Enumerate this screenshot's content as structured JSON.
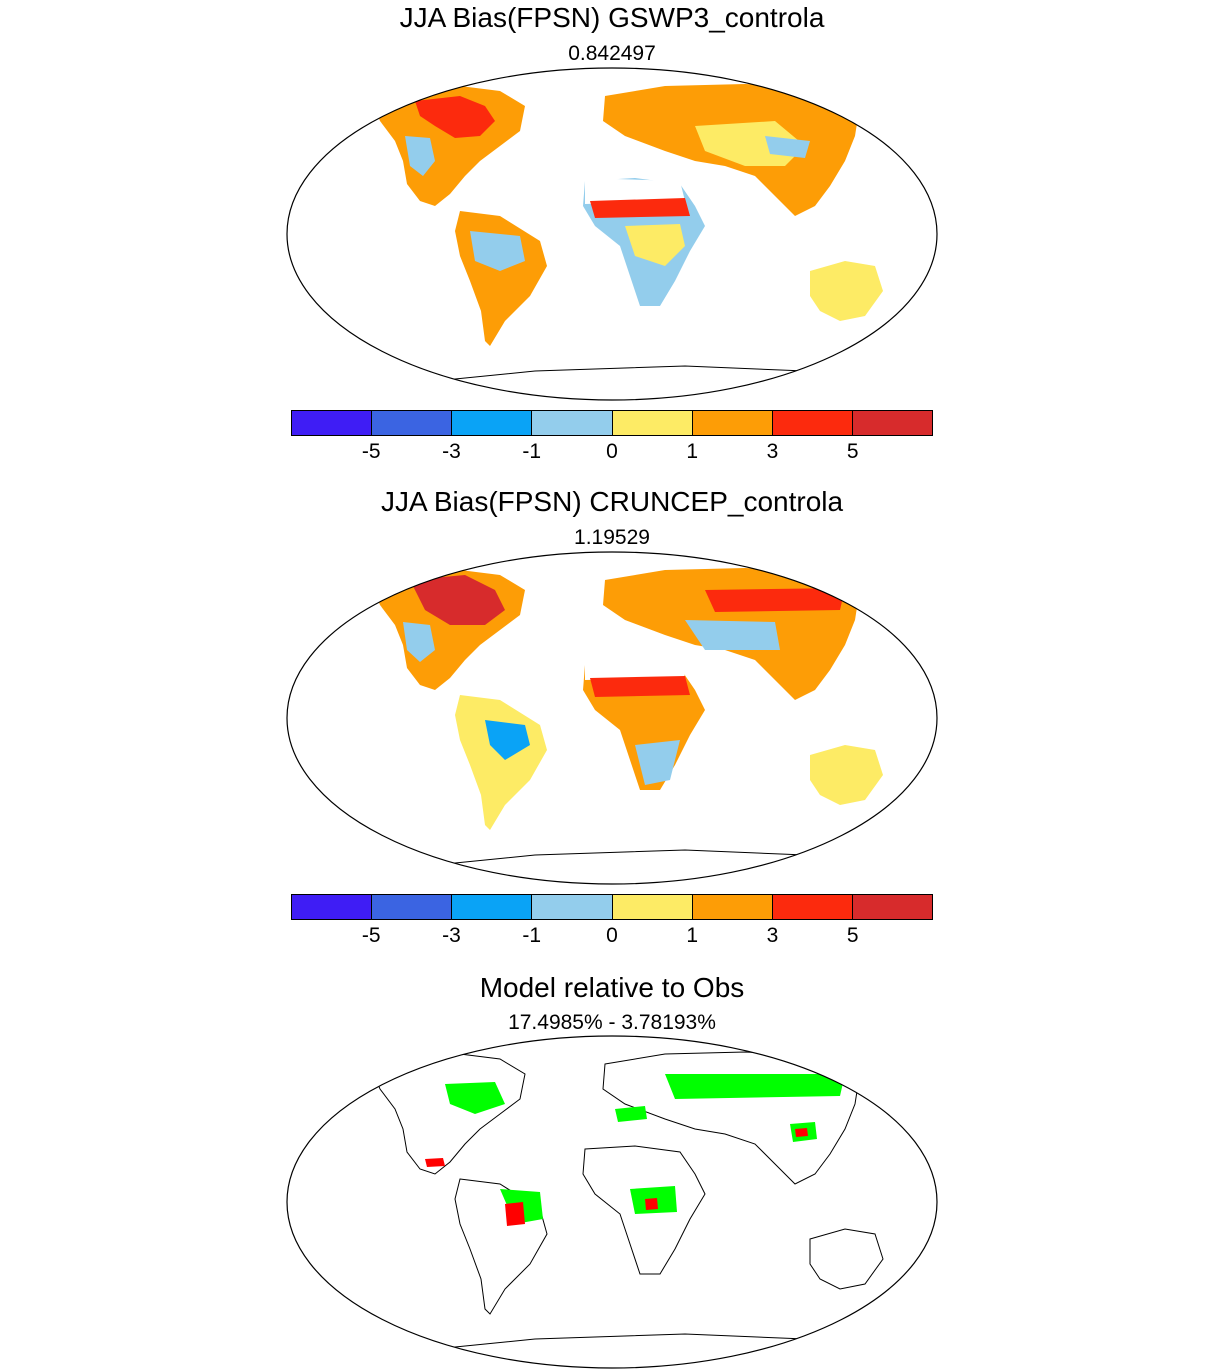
{
  "panels": [
    {
      "title": "JJA Bias(FPSN) GSWP3_controla",
      "subtitle": "0.842497",
      "colorbar": {
        "colors": [
          "#3f1df5",
          "#3b64e2",
          "#0aa3f6",
          "#93cdec",
          "#fdeb65",
          "#fd9d06",
          "#fc2a0d",
          "#d72b2c"
        ],
        "tick_labels": [
          "-5",
          "-3",
          "-1",
          "0",
          "1",
          "3",
          "5"
        ]
      }
    },
    {
      "title": "JJA Bias(FPSN) CRUNCEP_controla",
      "subtitle": "1.19529",
      "colorbar": {
        "colors": [
          "#3f1df5",
          "#3b64e2",
          "#0aa3f6",
          "#93cdec",
          "#fdeb65",
          "#fd9d06",
          "#fc2a0d",
          "#d72b2c"
        ],
        "tick_labels": [
          "-5",
          "-3",
          "-1",
          "0",
          "1",
          "3",
          "5"
        ]
      }
    },
    {
      "title": "Model relative to Obs",
      "subtitle": "17.4985% - 3.78193%",
      "colors": {
        "better": "#00ff00",
        "worse": "#ff0000"
      }
    }
  ]
}
